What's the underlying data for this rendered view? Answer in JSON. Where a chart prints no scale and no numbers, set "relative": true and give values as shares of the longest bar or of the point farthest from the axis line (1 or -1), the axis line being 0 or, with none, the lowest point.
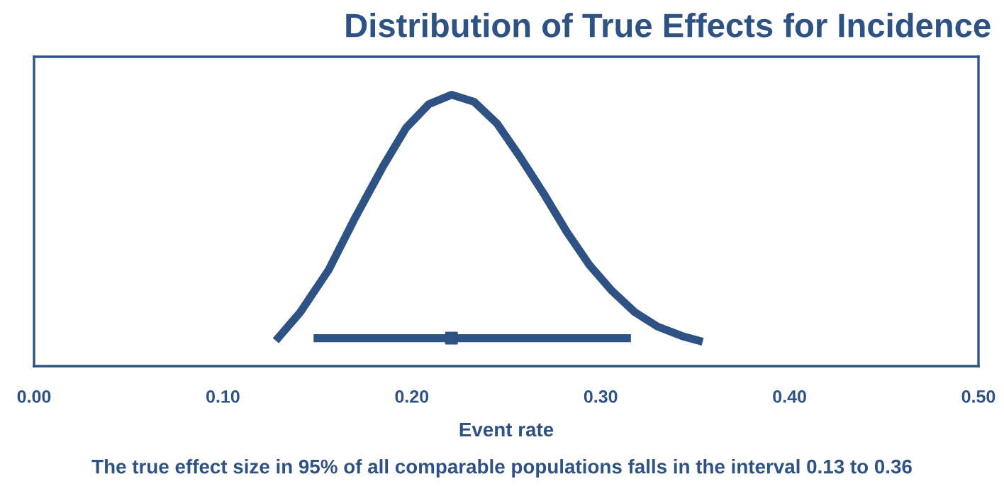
{
  "chart_data": {
    "type": "line",
    "title": "Distribution of True Effects for Incidence",
    "xlabel": "Event rate",
    "annotations": [
      "The true effect size in 95% of all comparable populations falls in the interval 0.13 to 0.36"
    ],
    "relative": true,
    "xlim": [
      0,
      0.5
    ],
    "xticks": [
      {
        "value": 0,
        "label": "0.00"
      },
      {
        "value": 0.1,
        "label": "0.10"
      },
      {
        "value": 0.2,
        "label": "0.20"
      },
      {
        "value": 0.3,
        "label": "0.30"
      },
      {
        "value": 0.4,
        "label": "0.40"
      },
      {
        "value": 0.5,
        "label": "0.50"
      }
    ],
    "grid": false,
    "legend": false,
    "series": [
      {
        "color": "#2d5283",
        "marker": "none",
        "line_style": "solid",
        "x": [
          0.128,
          0.141,
          0.156,
          0.17,
          0.185,
          0.197,
          0.209,
          0.221,
          0.233,
          0.245,
          0.257,
          0.27,
          0.282,
          0.294,
          0.306,
          0.318,
          0.33,
          0.343,
          0.354
        ],
        "values": [
          0.094,
          0.199,
          0.355,
          0.547,
          0.739,
          0.878,
          0.965,
          1,
          0.974,
          0.895,
          0.774,
          0.634,
          0.495,
          0.373,
          0.277,
          0.199,
          0.146,
          0.111,
          0.09
        ]
      },
      {
        "type": "scatter",
        "color": "#2d5283",
        "marker": "square",
        "x": [
          0.221
        ],
        "values": [
          0.103
        ],
        "xerrors": [
          [
            0.148,
            0.316
          ]
        ]
      }
    ]
  }
}
